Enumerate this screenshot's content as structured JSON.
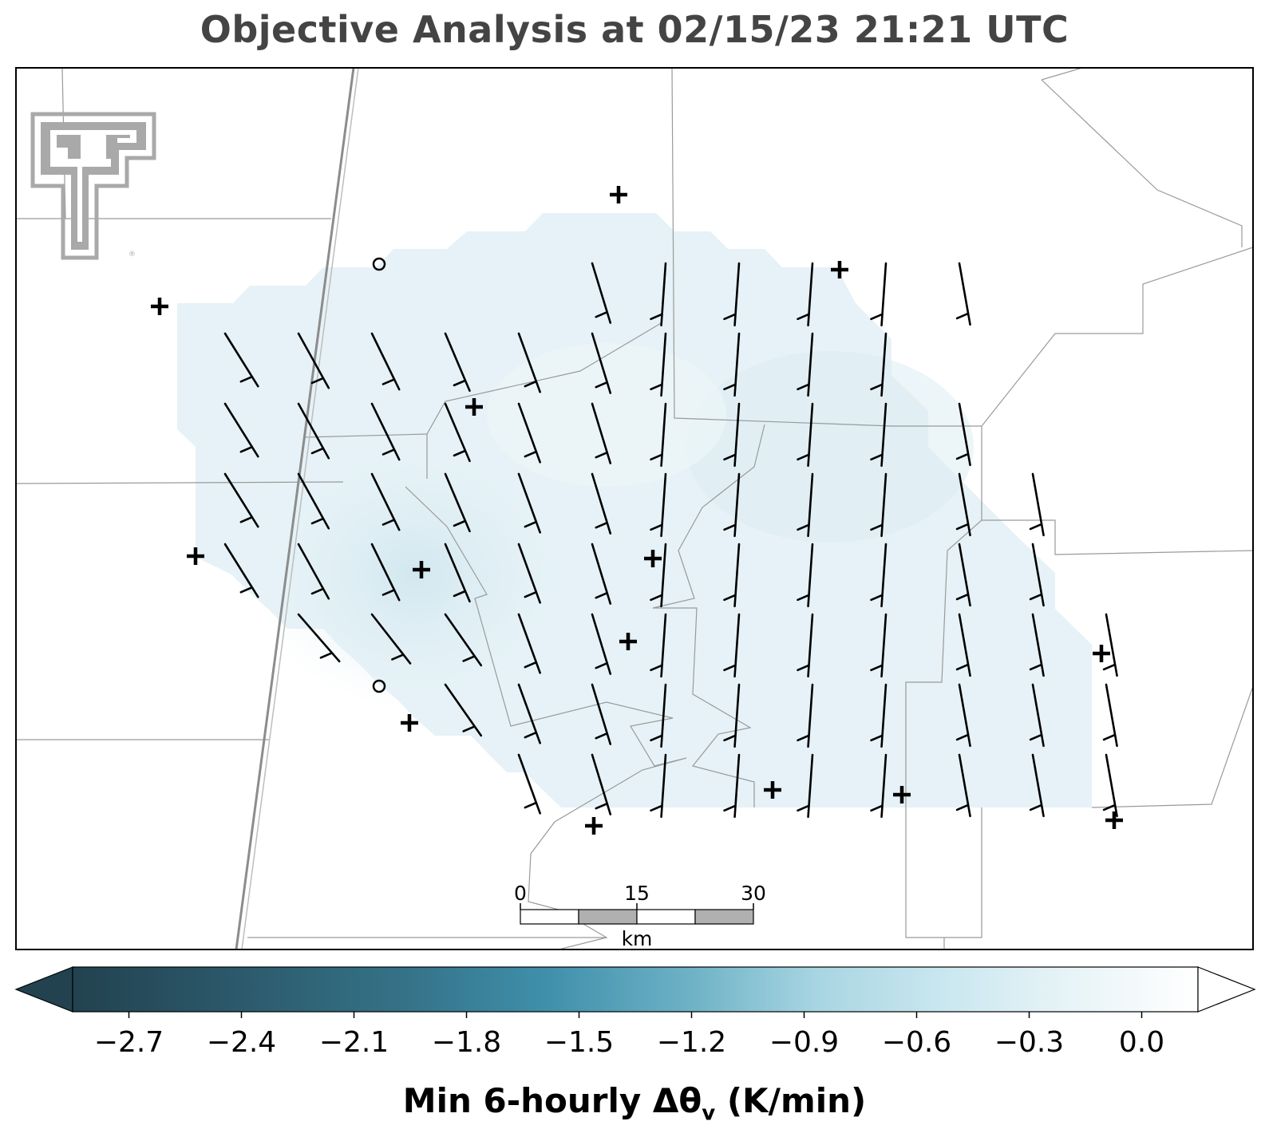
{
  "title": "Objective Analysis at 02/15/23 21:21 UTC",
  "colorbar": {
    "label_main": "Min 6-hourly Δθ",
    "label_sub": "v",
    "label_units": " (K/min)",
    "ticks": [
      "−2.7",
      "−2.4",
      "−2.1",
      "−1.8",
      "−1.5",
      "−1.2",
      "−0.9",
      "−0.6",
      "−0.3",
      "0.0"
    ],
    "range": [
      -2.85,
      0.15
    ],
    "colors": [
      "#22424f",
      "#3e8ba8",
      "#a8d6e3",
      "#ffffff"
    ]
  },
  "scale_bar": {
    "tick_labels": [
      "0",
      "15",
      "30"
    ],
    "unit": "km"
  },
  "logo": {
    "name": "Texas Tech Double T",
    "registered_mark": "®"
  },
  "stations_plus": 16,
  "stations_circle": 2,
  "field_colors": {
    "light": "#eaf4f8",
    "mid": "#ddeef4",
    "dark": "#d3e8ef"
  }
}
